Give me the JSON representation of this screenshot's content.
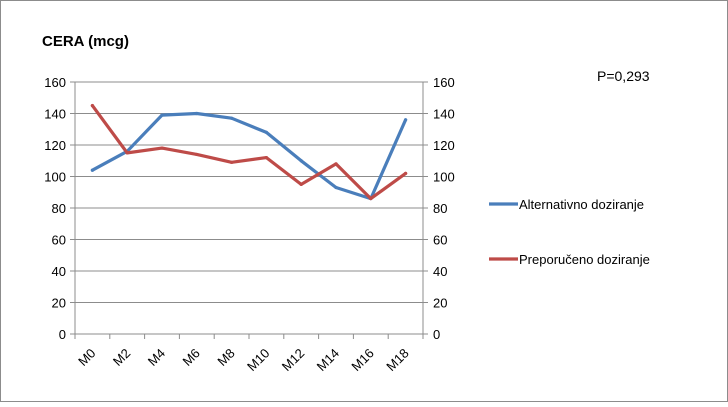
{
  "chart_data": {
    "type": "line",
    "title": "CERA (mcg)",
    "categories": [
      "M0",
      "M2",
      "M4",
      "M6",
      "M8",
      "M10",
      "M12",
      "M14",
      "M16",
      "M18"
    ],
    "series": [
      {
        "name": "Alternativno doziranje",
        "color": "#4a7ebb",
        "values": [
          104,
          116,
          139,
          140,
          137,
          128,
          110,
          93,
          86,
          136
        ]
      },
      {
        "name": "Preporučeno doziranje",
        "color": "#be4b48",
        "values": [
          145,
          115,
          118,
          114,
          109,
          112,
          95,
          108,
          86,
          102
        ]
      }
    ],
    "ylim": [
      0,
      160
    ],
    "yticks": [
      0,
      20,
      40,
      60,
      80,
      100,
      120,
      140,
      160
    ],
    "y_axis_duplicated_right": true,
    "grid": true,
    "legend_position": "right",
    "annotation": "P=0,293"
  }
}
